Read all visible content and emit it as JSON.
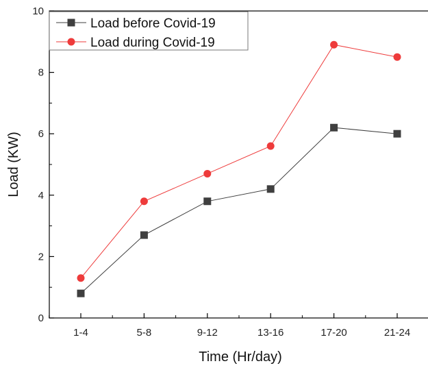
{
  "chart_data": {
    "type": "line",
    "categories": [
      "1-4",
      "5-8",
      "9-12",
      "13-16",
      "17-20",
      "21-24"
    ],
    "series": [
      {
        "name": "Load before Covid-19",
        "values": [
          0.8,
          2.7,
          3.8,
          4.2,
          6.2,
          6.0
        ],
        "color": "#3f3f3f",
        "marker": "square"
      },
      {
        "name": "Load during Covid-19",
        "values": [
          1.3,
          3.8,
          4.7,
          5.6,
          8.9,
          8.5
        ],
        "color": "#ee3b3b",
        "marker": "circle"
      }
    ],
    "title": "",
    "xlabel": "Time (Hr/day)",
    "ylabel": "Load (KW)",
    "ylim": [
      0,
      10
    ],
    "yticks": [
      "0",
      "2",
      "4",
      "6",
      "8",
      "10"
    ],
    "grid": false,
    "legend_position": "top-left"
  }
}
